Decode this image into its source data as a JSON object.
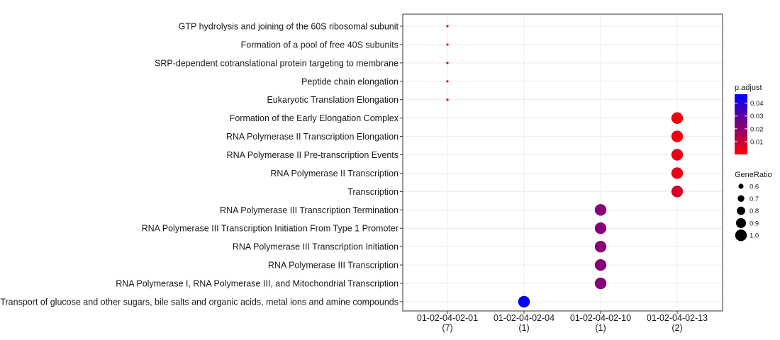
{
  "chart_data": {
    "type": "scatter",
    "title": "",
    "xlabel": "",
    "ylabel": "",
    "categories_x": [
      {
        "line1": "01-02-04-02-01",
        "line2": "(7)"
      },
      {
        "line1": "01-02-04-02-04",
        "line2": "(1)"
      },
      {
        "line1": "01-02-04-02-10",
        "line2": "(1)"
      },
      {
        "line1": "01-02-04-02-13",
        "line2": "(2)"
      }
    ],
    "categories_y": [
      "GTP hydrolysis and joining of the 60S ribosomal subunit",
      "Formation of a pool of free 40S subunits",
      "SRP-dependent cotranslational protein targeting to membrane",
      "Peptide chain elongation",
      "Eukaryotic Translation Elongation",
      "Formation of the Early Elongation Complex",
      "RNA Polymerase II Transcription Elongation",
      "RNA Polymerase II Pre-transcription Events",
      "RNA Polymerase II Transcription",
      "Transcription",
      "RNA Polymerase III Transcription Termination",
      "RNA Polymerase III Transcription Initiation From Type 1 Promoter",
      "RNA Polymerase III Transcription Initiation",
      "RNA Polymerase III Transcription",
      "RNA Polymerase I, RNA Polymerase III, and Mitochondrial Transcription",
      "Transport of glucose and other sugars, bile salts and organic acids, metal ions and amine compounds"
    ],
    "points": [
      {
        "x": 0,
        "y": 0,
        "gene_ratio": 0.43,
        "p_adjust": 0.008
      },
      {
        "x": 0,
        "y": 1,
        "gene_ratio": 0.43,
        "p_adjust": 0.008
      },
      {
        "x": 0,
        "y": 2,
        "gene_ratio": 0.43,
        "p_adjust": 0.008
      },
      {
        "x": 0,
        "y": 3,
        "gene_ratio": 0.43,
        "p_adjust": 0.008
      },
      {
        "x": 0,
        "y": 4,
        "gene_ratio": 0.43,
        "p_adjust": 0.008
      },
      {
        "x": 3,
        "y": 5,
        "gene_ratio": 1.0,
        "p_adjust": 0.003
      },
      {
        "x": 3,
        "y": 6,
        "gene_ratio": 1.0,
        "p_adjust": 0.003
      },
      {
        "x": 3,
        "y": 7,
        "gene_ratio": 1.0,
        "p_adjust": 0.004
      },
      {
        "x": 3,
        "y": 8,
        "gene_ratio": 1.0,
        "p_adjust": 0.004
      },
      {
        "x": 3,
        "y": 9,
        "gene_ratio": 1.0,
        "p_adjust": 0.008
      },
      {
        "x": 2,
        "y": 10,
        "gene_ratio": 1.0,
        "p_adjust": 0.022
      },
      {
        "x": 2,
        "y": 11,
        "gene_ratio": 1.0,
        "p_adjust": 0.022
      },
      {
        "x": 2,
        "y": 12,
        "gene_ratio": 1.0,
        "p_adjust": 0.022
      },
      {
        "x": 2,
        "y": 13,
        "gene_ratio": 1.0,
        "p_adjust": 0.022
      },
      {
        "x": 2,
        "y": 14,
        "gene_ratio": 1.0,
        "p_adjust": 0.022
      },
      {
        "x": 1,
        "y": 15,
        "gene_ratio": 1.0,
        "p_adjust": 0.047
      }
    ],
    "grid": true,
    "legend_placement": "right",
    "color_legend": {
      "title": "p.adjust",
      "ticks": [
        0.01,
        0.02,
        0.03,
        0.04
      ],
      "tick_labels": [
        "0.01",
        "0.02",
        "0.03",
        "0.04"
      ],
      "range": [
        0.0,
        0.047
      ],
      "low_color": "#ff0000",
      "high_color": "#0000ff"
    },
    "size_legend": {
      "title": "GeneRatio",
      "values": [
        0.6,
        0.7,
        0.8,
        0.9,
        1.0
      ],
      "labels": [
        "0.6",
        "0.7",
        "0.8",
        "0.9",
        "1.0"
      ]
    }
  }
}
